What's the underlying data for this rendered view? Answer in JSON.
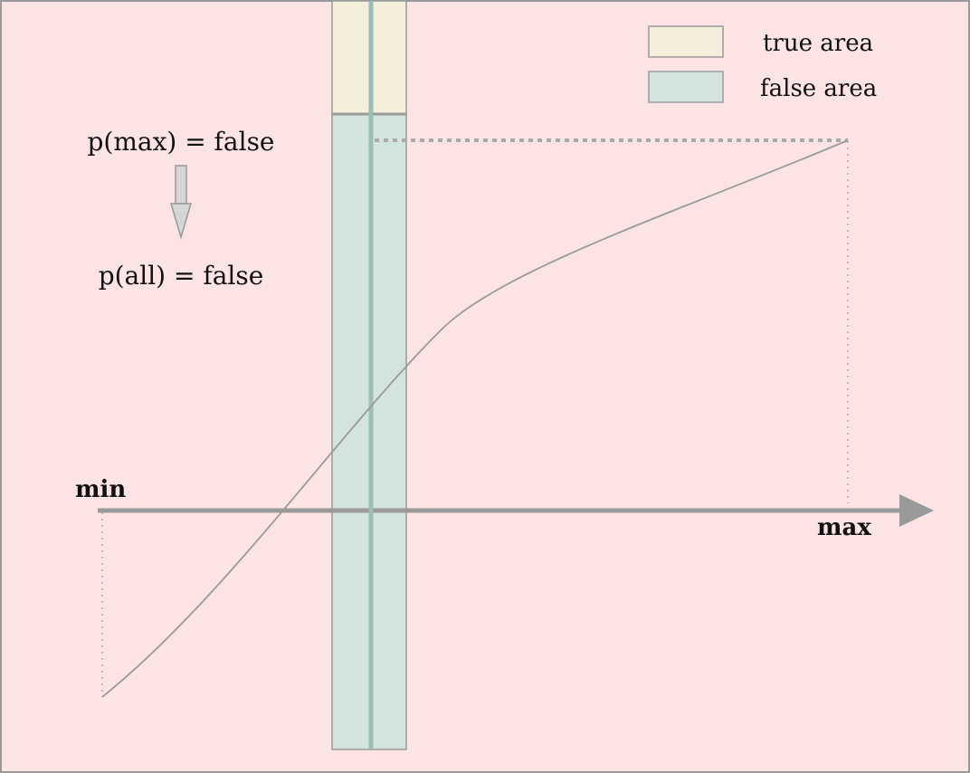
{
  "diagram": {
    "axis": {
      "min_label": "min",
      "max_label": "max"
    },
    "annotations": {
      "premise": "p(max) = false",
      "conclusion": "p(all) = false"
    },
    "legend": {
      "items": [
        {
          "label": "true area",
          "color": "#f4eedd"
        },
        {
          "label": "false area",
          "color": "#d3e3dd"
        }
      ]
    },
    "colors": {
      "background": "#fce4e4",
      "border": "#999999",
      "axis": "#9a9a9a",
      "curve": "#9a9a9a",
      "probe_line": "#9cbfb5",
      "arrow_fill": "#d6d6d6",
      "arrow_stroke": "#999999"
    }
  }
}
